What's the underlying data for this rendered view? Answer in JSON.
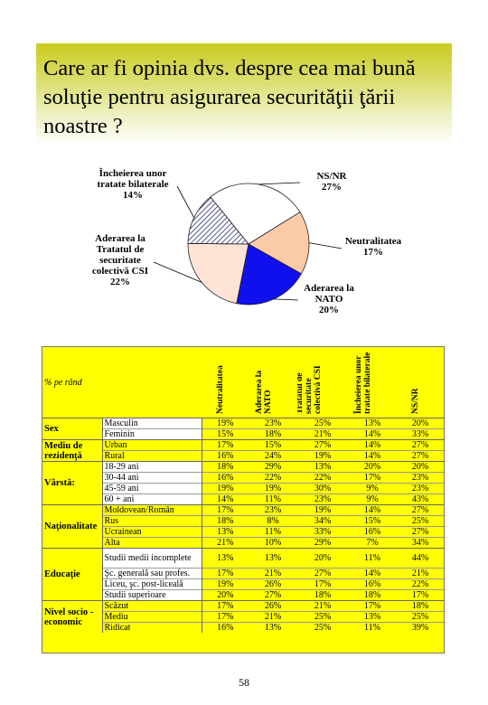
{
  "title": "Care ar fi opinia dvs. despre cea mai bună soluţie pentru asigurarea securităţii ţării noastre ?",
  "page_number": "58",
  "chart_data": [
    {
      "type": "pie",
      "labels": [
        "NS/NR 27%",
        "Neutralitatea 17%",
        "Aderarea la NATO 20%",
        "Aderarea la Tratatul de securitate colectivă CSI 22%",
        "Încheierea unor tratate bilaterale 14%"
      ],
      "label_lines": [
        [
          "NS/NR",
          "27%"
        ],
        [
          "Neutralitatea",
          "17%"
        ],
        [
          "Aderarea la",
          "NATO",
          "20%"
        ],
        [
          "Aderarea la",
          "Tratatul de",
          "securitate",
          "colectivă CSI",
          "22%"
        ],
        [
          "Încheierea unor",
          "tratate bilaterale",
          "14%"
        ]
      ],
      "values": [
        27,
        17,
        20,
        22,
        14
      ],
      "colors": [
        "#ffffff",
        "#fbcba8",
        "#1010ee",
        "#ffe4d6",
        "#ffffff"
      ],
      "patterns": [
        "none",
        "none",
        "none",
        "none",
        "hatch"
      ]
    },
    {
      "type": "table",
      "unit_label": "% pe rând",
      "columns": [
        "Neutralitatea",
        "Aderarea la NATO",
        "Aderarea la Tratatul de securitate colectivă CSI",
        "Încheierea unor tratate bilaterale",
        "NS/NR"
      ],
      "groups": [
        {
          "label": "Sex",
          "highlight": false,
          "rows": [
            {
              "label": "Masculin",
              "values": [
                "19%",
                "23%",
                "25%",
                "13%",
                "20%"
              ]
            },
            {
              "label": "Feminin",
              "values": [
                "15%",
                "18%",
                "21%",
                "14%",
                "33%"
              ]
            }
          ]
        },
        {
          "label": "Mediu de rezidenţă",
          "highlight": true,
          "rows": [
            {
              "label": "Urban",
              "values": [
                "17%",
                "15%",
                "27%",
                "14%",
                "27%"
              ]
            },
            {
              "label": "Rural",
              "values": [
                "16%",
                "24%",
                "19%",
                "14%",
                "27%"
              ]
            }
          ]
        },
        {
          "label": "Vârstă:",
          "highlight": false,
          "rows": [
            {
              "label": "18-29 ani",
              "values": [
                "18%",
                "29%",
                "13%",
                "20%",
                "20%"
              ]
            },
            {
              "label": "30-44 ani",
              "values": [
                "16%",
                "22%",
                "22%",
                "17%",
                "23%"
              ]
            },
            {
              "label": "45-59 ani",
              "values": [
                "19%",
                "19%",
                "30%",
                "9%",
                "23%"
              ]
            },
            {
              "label": "60 + ani",
              "values": [
                "14%",
                "11%",
                "23%",
                "9%",
                "43%"
              ]
            }
          ]
        },
        {
          "label": "Naţionalitate",
          "highlight": true,
          "rows": [
            {
              "label": "Moldovean/Român",
              "values": [
                "17%",
                "23%",
                "19%",
                "14%",
                "27%"
              ]
            },
            {
              "label": "Rus",
              "values": [
                "18%",
                "8%",
                "34%",
                "15%",
                "25%"
              ]
            },
            {
              "label": "Ucrainean",
              "values": [
                "13%",
                "11%",
                "33%",
                "16%",
                "27%"
              ]
            },
            {
              "label": "Alta",
              "values": [
                "21%",
                "10%",
                "29%",
                "7%",
                "34%"
              ]
            }
          ]
        },
        {
          "label": "Educaţie",
          "highlight": false,
          "rows": [
            {
              "label": "Studii medii incomplete",
              "values": [
                "13%",
                "13%",
                "20%",
                "11%",
                "44%"
              ]
            },
            {
              "label": "Şc. generală sau profes.",
              "values": [
                "17%",
                "21%",
                "27%",
                "14%",
                "21%"
              ]
            },
            {
              "label": "Liceu, şc. post-liceală",
              "values": [
                "19%",
                "26%",
                "17%",
                "16%",
                "22%"
              ]
            },
            {
              "label": "Studii superioare",
              "values": [
                "20%",
                "27%",
                "18%",
                "18%",
                "17%"
              ]
            }
          ]
        },
        {
          "label": "Nivel socio - economic",
          "highlight": true,
          "rows": [
            {
              "label": "Scăzut",
              "values": [
                "17%",
                "26%",
                "21%",
                "17%",
                "18%"
              ]
            },
            {
              "label": "Mediu",
              "values": [
                "17%",
                "21%",
                "25%",
                "13%",
                "25%"
              ]
            },
            {
              "label": "Ridicat",
              "values": [
                "16%",
                "13%",
                "25%",
                "11%",
                "39%"
              ]
            }
          ]
        }
      ]
    }
  ]
}
